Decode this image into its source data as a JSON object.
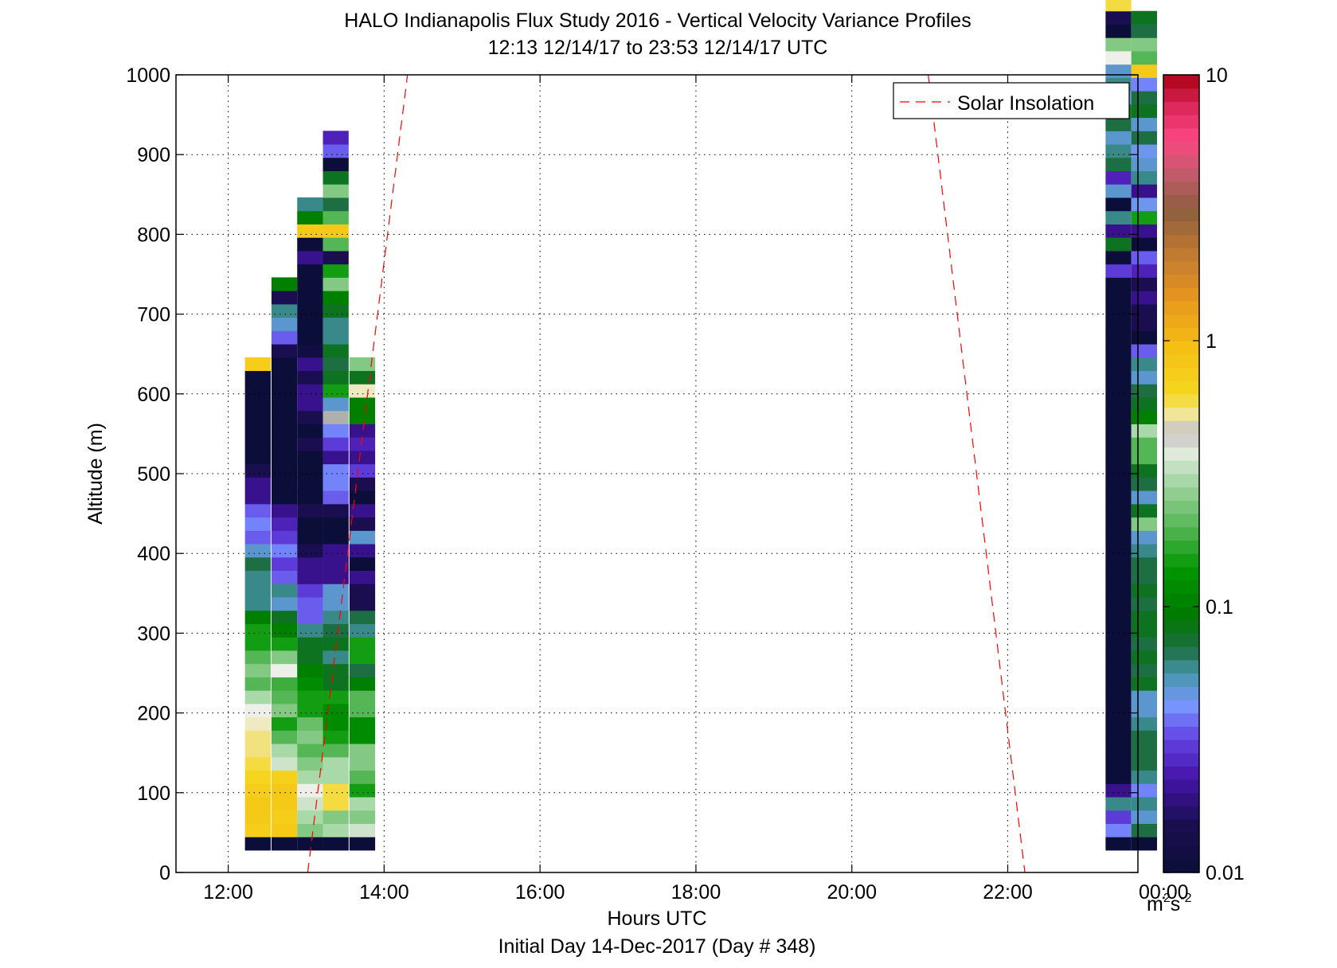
{
  "chart_data": {
    "type": "heatmap",
    "title": "HALO Indianapolis Flux Study 2016 - Vertical Velocity Variance Profiles",
    "subtitle": "12:13 12/14/17 to 23:53 12/14/17  UTC",
    "xlabel": "Hours UTC",
    "xlabel2": "Initial Day 14-Dec-2017 (Day # 348)",
    "ylabel": "Altitude (m)",
    "xlim": [
      11.33,
      23.67
    ],
    "ylim": [
      0,
      1000
    ],
    "x_ticks": [
      12,
      14,
      16,
      18,
      20,
      22,
      24
    ],
    "x_tick_labels": [
      "12:00",
      "14:00",
      "16:00",
      "18:00",
      "20:00",
      "22:00",
      "00:00"
    ],
    "y_ticks": [
      0,
      100,
      200,
      300,
      400,
      500,
      600,
      700,
      800,
      900,
      1000
    ],
    "grid": true,
    "legend": {
      "position": "top-right",
      "entries": [
        "Solar Insolation"
      ]
    },
    "colorbar": {
      "scale": "log",
      "range": [
        0.01,
        10
      ],
      "ticks": [
        0.01,
        0.1,
        1,
        10
      ],
      "tick_labels": [
        "0.01",
        "0.1",
        "1",
        "10"
      ],
      "unit_base": "m",
      "unit_sup1": "2",
      "unit_mid": "s",
      "unit_sup2": "-2"
    },
    "solar_insolation_lines": [
      {
        "x": [
          13.02,
          14.3
        ],
        "y": [
          0,
          1000
        ]
      },
      {
        "x": [
          20.98,
          22.22
        ],
        "y": [
          1000,
          0
        ]
      }
    ],
    "bin_height_m": 16.7,
    "bottom_altitude_m": 28,
    "columns": [
      {
        "x_center": 12.38,
        "width_h": 0.33,
        "values": [
          0.01,
          0.75,
          0.8,
          0.8,
          0.75,
          0.65,
          0.6,
          0.55,
          0.55,
          0.5,
          0.4,
          0.3,
          0.2,
          0.25,
          0.2,
          0.15,
          0.15,
          0.1,
          0.06,
          0.06,
          0.06,
          0.07,
          0.05,
          0.035,
          0.04,
          0.035,
          0.02,
          0.02,
          0.015,
          0.01,
          0.01,
          0.01,
          0.01,
          0.01,
          0.01,
          0.01,
          0.75
        ]
      },
      {
        "x_center": 12.72,
        "width_h": 0.33,
        "values": [
          0.01,
          0.8,
          0.75,
          0.8,
          0.8,
          0.7,
          0.35,
          0.3,
          0.2,
          0.15,
          0.25,
          0.2,
          0.18,
          0.4,
          0.25,
          0.15,
          0.1,
          0.08,
          0.05,
          0.06,
          0.035,
          0.03,
          0.04,
          0.03,
          0.025,
          0.02,
          0.01,
          0.01,
          0.01,
          0.01,
          0.01,
          0.01,
          0.01,
          0.01,
          0.01,
          0.01,
          0.01,
          0.015,
          0.035,
          0.05,
          0.06,
          0.015,
          0.1
        ]
      },
      {
        "x_center": 13.05,
        "width_h": 0.33,
        "values": [
          0.01,
          0.25,
          0.3,
          0.35,
          0.4,
          0.3,
          0.25,
          0.2,
          0.25,
          0.22,
          0.15,
          0.15,
          0.12,
          0.1,
          0.08,
          0.08,
          0.06,
          0.035,
          0.035,
          0.03,
          0.02,
          0.02,
          0.015,
          0.01,
          0.01,
          0.015,
          0.01,
          0.01,
          0.01,
          0.01,
          0.015,
          0.01,
          0.015,
          0.02,
          0.02,
          0.015,
          0.02,
          0.012,
          0.01,
          0.01,
          0.01,
          0.01,
          0.01,
          0.01,
          0.02,
          0.01,
          0.8,
          0.1,
          0.06
        ]
      },
      {
        "x_center": 13.38,
        "width_h": 0.33,
        "values": [
          0.01,
          0.3,
          0.25,
          0.6,
          0.6,
          0.3,
          0.3,
          0.2,
          0.15,
          0.12,
          0.12,
          0.15,
          0.08,
          0.08,
          0.06,
          0.08,
          0.07,
          0.06,
          0.05,
          0.05,
          0.02,
          0.02,
          0.02,
          0.01,
          0.01,
          0.015,
          0.035,
          0.04,
          0.04,
          0.02,
          0.03,
          0.04,
          0.45,
          0.05,
          0.15,
          0.08,
          0.07,
          0.08,
          0.06,
          0.06,
          0.08,
          0.1,
          0.25,
          0.15,
          0.015,
          0.2,
          0.8,
          0.2,
          0.07,
          0.25,
          0.08,
          0.01,
          0.035,
          0.025
        ]
      },
      {
        "x_center": 13.72,
        "width_h": 0.33,
        "values": [
          0.01,
          0.35,
          0.25,
          0.3,
          0.15,
          0.2,
          0.25,
          0.25,
          0.12,
          0.12,
          0.2,
          0.2,
          0.1,
          0.07,
          0.15,
          0.15,
          0.06,
          0.07,
          0.015,
          0.015,
          0.02,
          0.01,
          0.02,
          0.05,
          0.015,
          0.02,
          0.01,
          0.015,
          0.03,
          0.02,
          0.025,
          0.02,
          0.1,
          0.1,
          0.5,
          0.08,
          0.25
        ]
      },
      {
        "x_center": 23.42,
        "width_h": 0.33,
        "values": [
          0.01,
          0.04,
          0.03,
          0.06,
          0.02,
          0.01,
          0.01,
          0.01,
          0.01,
          0.01,
          0.01,
          0.01,
          0.01,
          0.01,
          0.01,
          0.01,
          0.01,
          0.01,
          0.01,
          0.01,
          0.01,
          0.01,
          0.01,
          0.01,
          0.01,
          0.01,
          0.01,
          0.01,
          0.01,
          0.01,
          0.01,
          0.01,
          0.01,
          0.01,
          0.01,
          0.01,
          0.01,
          0.01,
          0.01,
          0.01,
          0.01,
          0.01,
          0.01,
          0.03,
          0.01,
          0.08,
          0.02,
          0.06,
          0.01,
          0.05,
          0.025,
          0.07,
          0.06,
          0.05,
          0.07,
          0.08,
          0.05,
          0.06,
          0.05,
          0.4,
          0.25,
          0.01,
          0.015,
          0.6,
          0.15,
          0.3
        ]
      },
      {
        "x_center": 23.75,
        "width_h": 0.33,
        "values": [
          0.01,
          0.07,
          0.05,
          0.06,
          0.04,
          0.06,
          0.07,
          0.07,
          0.07,
          0.06,
          0.05,
          0.05,
          0.08,
          0.07,
          0.08,
          0.07,
          0.08,
          0.08,
          0.07,
          0.08,
          0.07,
          0.07,
          0.06,
          0.05,
          0.25,
          0.08,
          0.05,
          0.07,
          0.08,
          0.2,
          0.2,
          0.3,
          0.1,
          0.08,
          0.07,
          0.05,
          0.06,
          0.035,
          0.01,
          0.015,
          0.015,
          0.02,
          0.015,
          0.025,
          0.035,
          0.01,
          0.02,
          0.15,
          0.045,
          0.02,
          0.06,
          0.05,
          0.045,
          0.07,
          0.05,
          0.08,
          0.07,
          0.04,
          0.8,
          0.2,
          0.25,
          0.07,
          0.08
        ]
      }
    ]
  }
}
